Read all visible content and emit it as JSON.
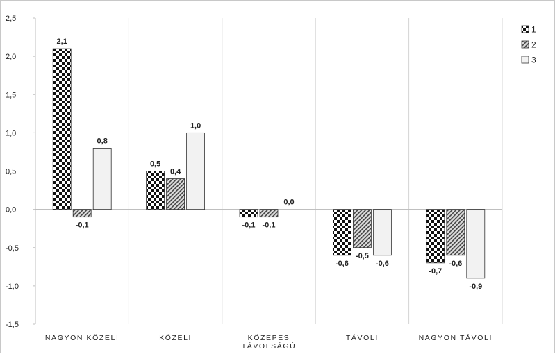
{
  "chart_data": {
    "type": "bar",
    "categories": [
      [
        "NAGYON KÖZELI"
      ],
      [
        "KÖZELI"
      ],
      [
        "KÖZEPES",
        "TÁVOLSÁGÚ"
      ],
      [
        "TÁVOLI"
      ],
      [
        "NAGYON TÁVOLI"
      ]
    ],
    "series": [
      {
        "name": "1",
        "values": [
          2.1,
          0.5,
          -0.1,
          -0.6,
          -0.7
        ],
        "labels": [
          "2,1",
          "0,5",
          "-0,1",
          "-0,6",
          "-0,7"
        ],
        "pattern": "checker"
      },
      {
        "name": "2",
        "values": [
          -0.1,
          0.4,
          -0.1,
          -0.5,
          -0.6
        ],
        "labels": [
          "-0,1",
          "0,4",
          "-0,1",
          "-0,5",
          "-0,6"
        ],
        "pattern": "hatch"
      },
      {
        "name": "3",
        "values": [
          0.8,
          1.0,
          0.0,
          -0.6,
          -0.9
        ],
        "labels": [
          "0,8",
          "1,0",
          "0,0",
          "-0,6",
          "-0,9"
        ],
        "pattern": "light"
      }
    ],
    "y_ticks": [
      2.5,
      2.0,
      1.5,
      1.0,
      0.5,
      0.0,
      -0.5,
      -1.0,
      -1.5
    ],
    "y_tick_labels": [
      "2,5",
      "2,0",
      "1,5",
      "1,0",
      "0,5",
      "0,0",
      "-0,5",
      "-1,0",
      "-1,5"
    ],
    "ylim": [
      -1.5,
      2.5
    ],
    "legend_position": "top-right",
    "grid": "vertical category separators",
    "colors": {
      "axis": "#bfbfbf",
      "light_fill": "#f2f2f2",
      "outline": "#333333"
    }
  }
}
